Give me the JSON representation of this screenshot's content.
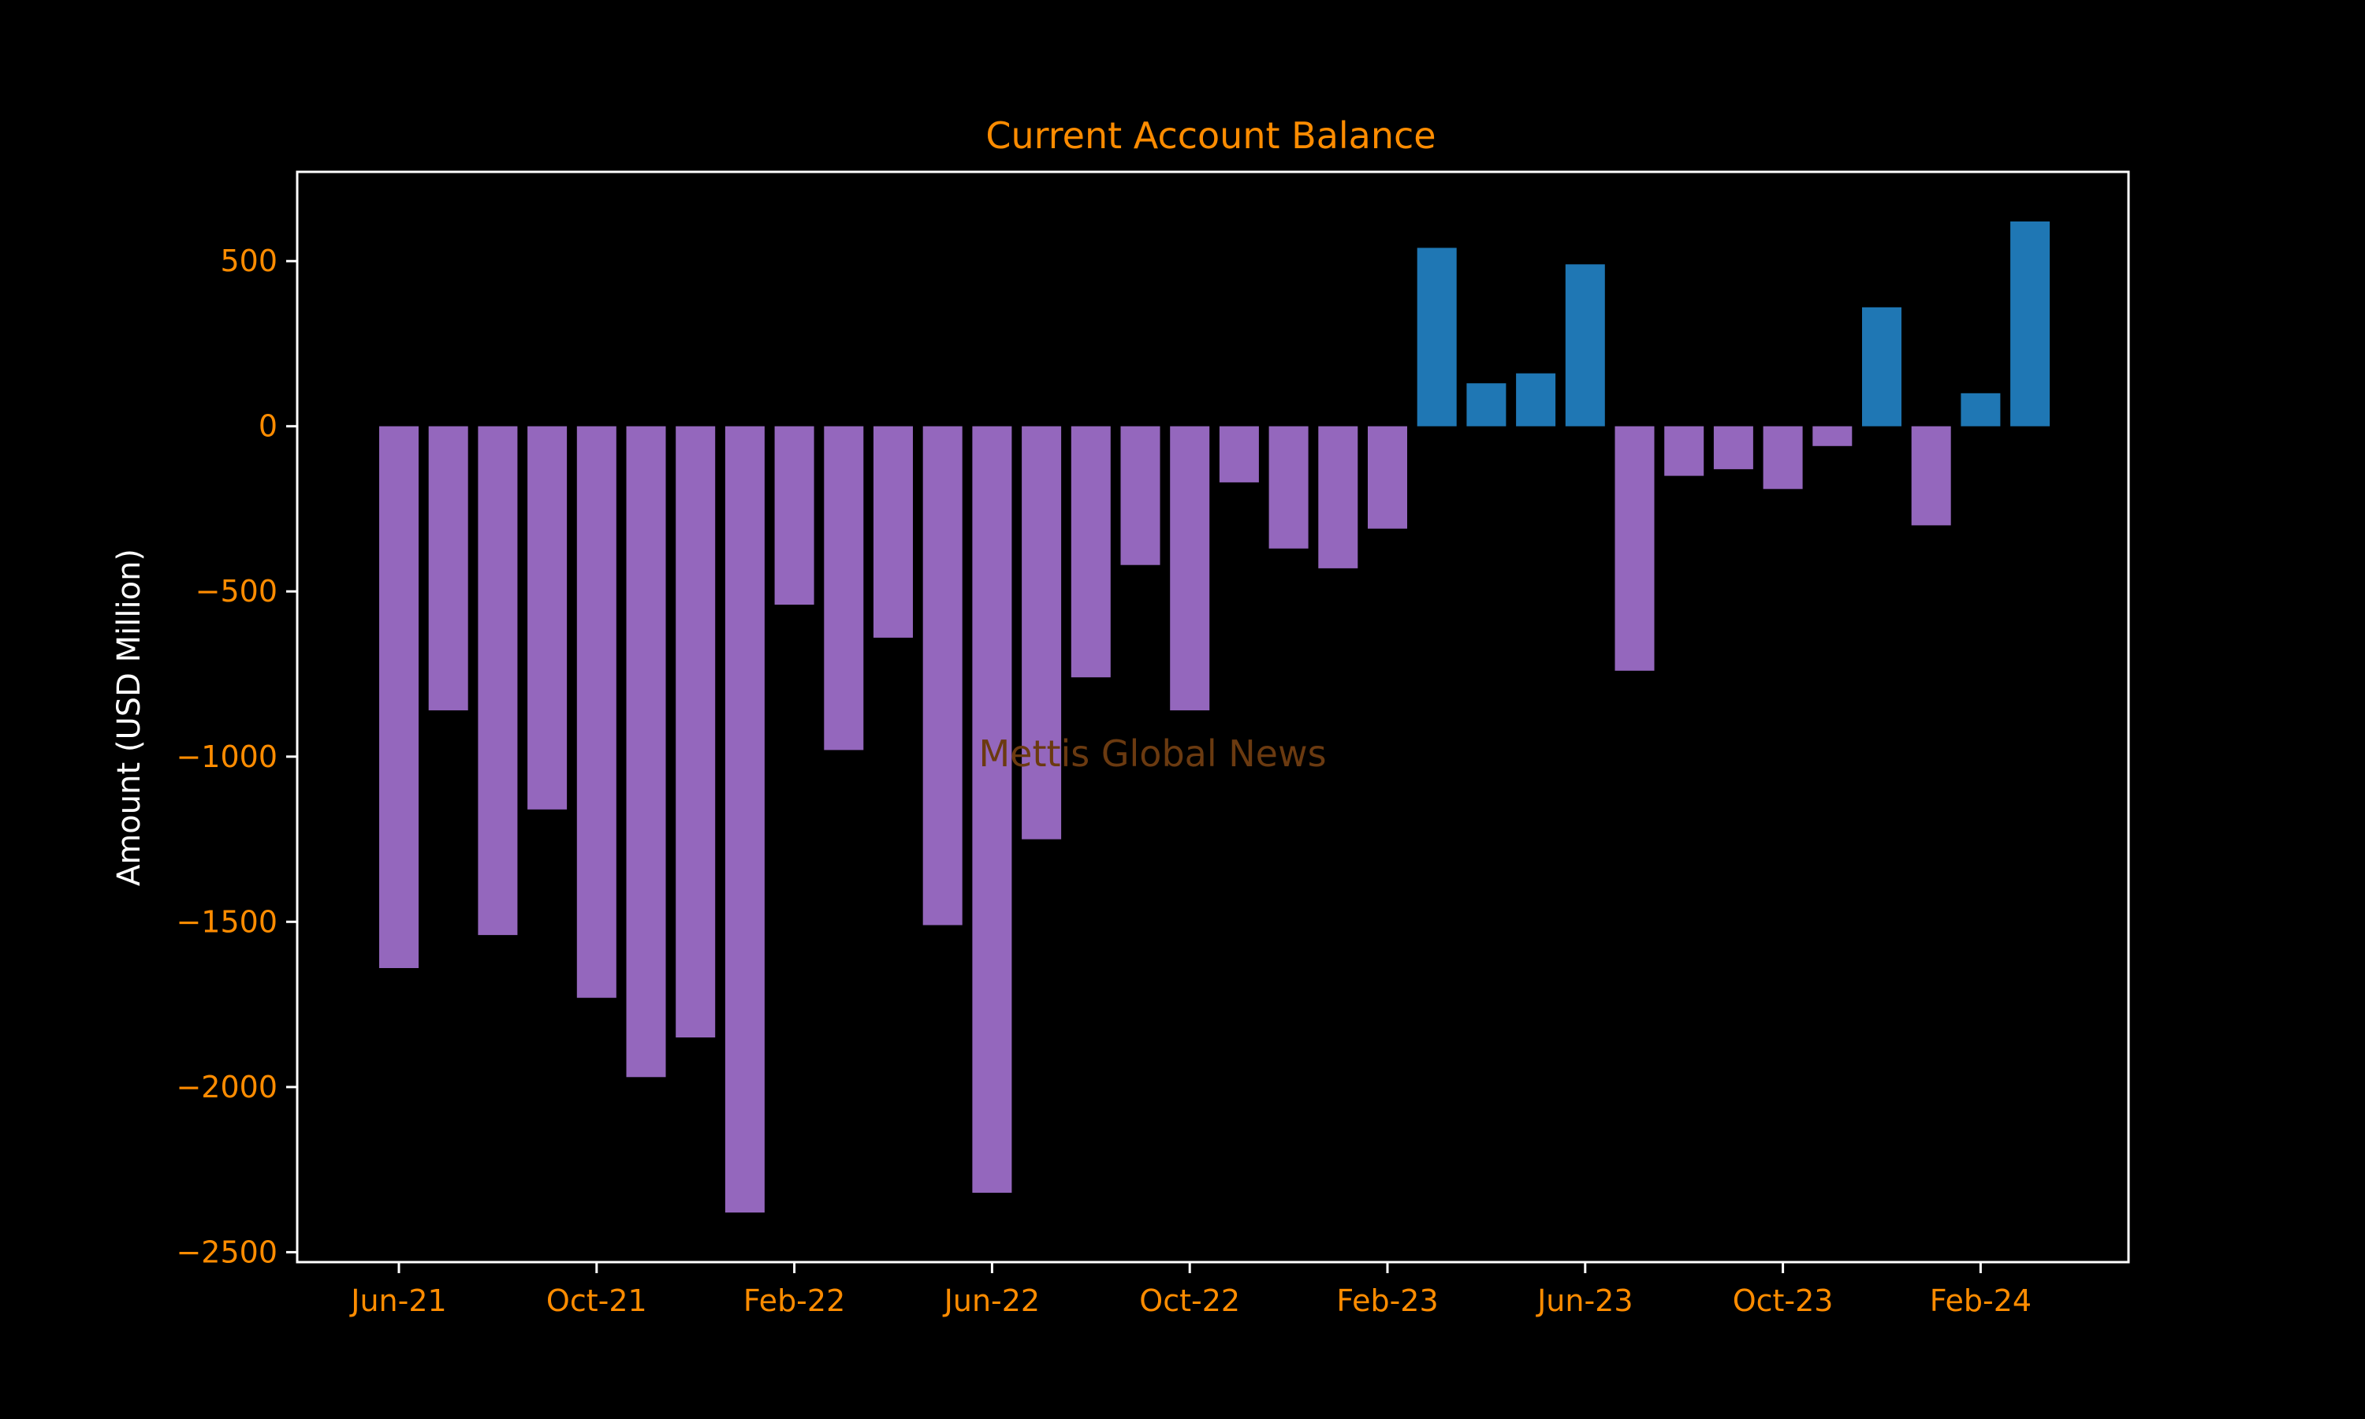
{
  "colors": {
    "background": "#000000",
    "positive": "#1f77b4",
    "negative": "#9467bd",
    "accent": "#ff8c00",
    "axis": "#ffffff",
    "watermark": "#6b3a10"
  },
  "chart_data": {
    "type": "bar",
    "title": "Current Account Balance",
    "xlabel": "",
    "ylabel": "Amount (USD Million)",
    "watermark": "Mettis Global News",
    "ylim": [
      -2530,
      770
    ],
    "yticks": [
      500,
      0,
      -500,
      -1000,
      -1500,
      -2000,
      -2500
    ],
    "ytick_labels": [
      "500",
      "0",
      "−500",
      "−1000",
      "−1500",
      "−2000",
      "−2500"
    ],
    "xtick_labels": [
      "Jun-21",
      "Oct-21",
      "Feb-22",
      "Jun-22",
      "Oct-22",
      "Feb-23",
      "Jun-23",
      "Oct-23",
      "Feb-24"
    ],
    "categories": [
      "Jun-21",
      "Jul-21",
      "Aug-21",
      "Sep-21",
      "Oct-21",
      "Nov-21",
      "Dec-21",
      "Jan-22",
      "Feb-22",
      "Mar-22",
      "Apr-22",
      "May-22",
      "Jun-22",
      "Jul-22",
      "Aug-22",
      "Sep-22",
      "Oct-22",
      "Nov-22",
      "Dec-22",
      "Jan-23",
      "Feb-23",
      "Mar-23",
      "Apr-23",
      "May-23",
      "Jun-23",
      "Jul-23",
      "Aug-23",
      "Sep-23",
      "Oct-23",
      "Nov-23",
      "Dec-23",
      "Jan-24",
      "Feb-24",
      "Mar-24"
    ],
    "values": [
      -1640,
      -860,
      -1540,
      -1160,
      -1730,
      -1970,
      -1850,
      -2380,
      -540,
      -980,
      -640,
      -1510,
      -2320,
      -1250,
      -760,
      -420,
      -860,
      -170,
      -370,
      -430,
      -310,
      540,
      130,
      160,
      490,
      -740,
      -150,
      -130,
      -190,
      -60,
      360,
      -300,
      100,
      620
    ],
    "grid": false,
    "legend": "none"
  }
}
